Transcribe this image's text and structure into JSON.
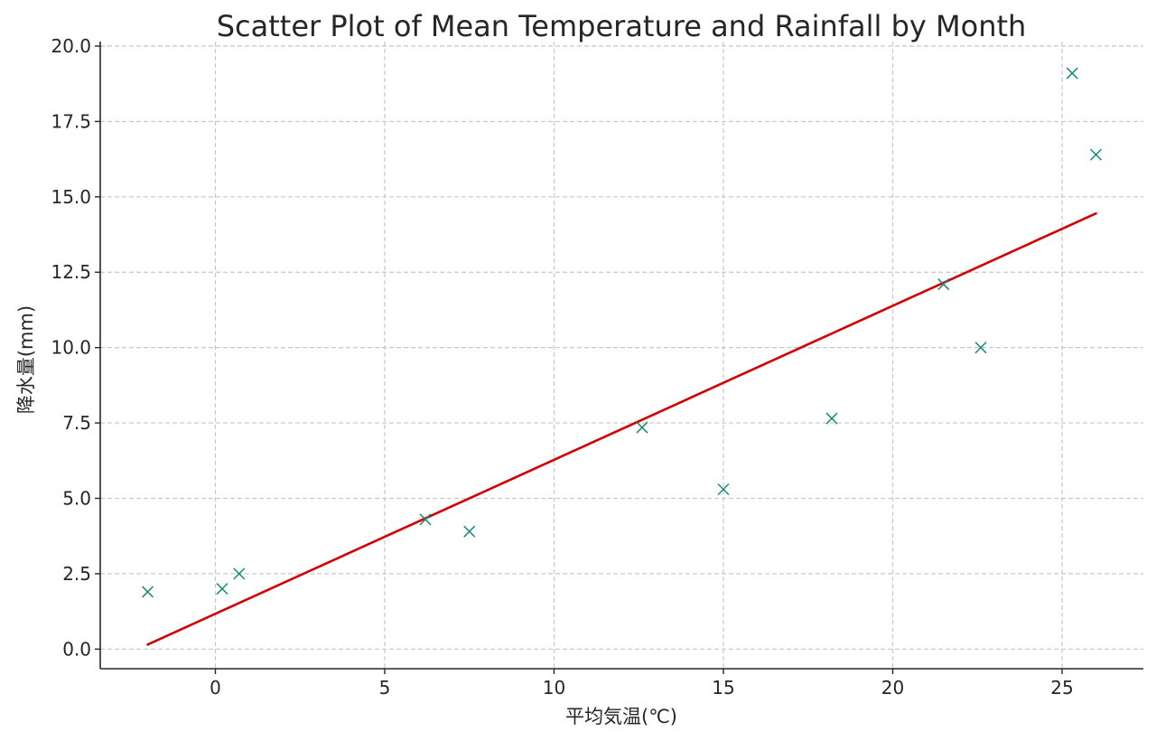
{
  "chart_data": {
    "type": "scatter",
    "title": "Scatter Plot of Mean Temperature and Rainfall by Month",
    "xlabel": "平均気温(℃)",
    "ylabel": "降水量(mm)",
    "xlim": [
      -3.4,
      27.4
    ],
    "ylim": [
      -0.65,
      20.15
    ],
    "xticks": [
      0,
      5,
      10,
      15,
      20,
      25
    ],
    "xtick_labels": [
      "0",
      "5",
      "10",
      "15",
      "20",
      "25"
    ],
    "yticks": [
      0,
      2.5,
      5,
      7.5,
      10,
      12.5,
      15,
      17.5,
      20
    ],
    "ytick_labels": [
      "0.0",
      "2.5",
      "5.0",
      "7.5",
      "10.0",
      "12.5",
      "15.0",
      "17.5",
      "20.0"
    ],
    "grid": true,
    "marker": "x",
    "colors": {
      "points": "#1a8a78",
      "trend": "#d00000"
    },
    "series": [
      {
        "x": [
          -2.0,
          0.2,
          0.7,
          6.2,
          7.5,
          12.6,
          15.0,
          18.2,
          21.5,
          22.6,
          25.3,
          26.0
        ],
        "y": [
          1.9,
          2.0,
          2.5,
          4.3,
          3.9,
          7.35,
          5.3,
          7.65,
          12.1,
          10.0,
          19.1,
          16.4
        ]
      }
    ],
    "trend_line": {
      "x": [
        -2.0,
        26.0
      ],
      "y": [
        0.15,
        14.45
      ]
    }
  }
}
